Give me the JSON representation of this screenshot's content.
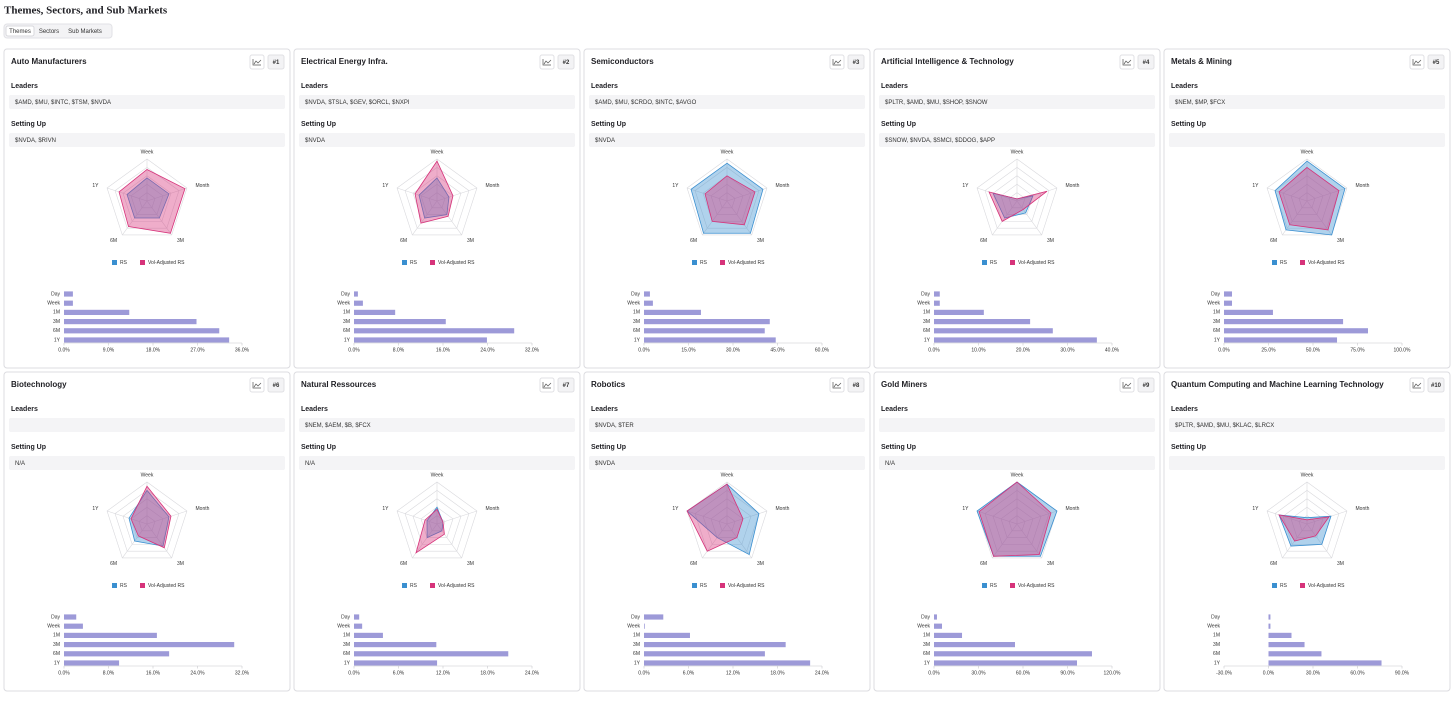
{
  "header": {
    "title": "Themes, Sectors, and Sub Markets",
    "tabs": [
      "Themes",
      "Sectors",
      "Sub Markets"
    ],
    "active_tab": 0
  },
  "cards": [
    {
      "title": "Auto Manufacturers",
      "rank": "#1",
      "leaders_label": "Leaders",
      "leaders": "$AMD, $MU, $INTC, $TSM, $NVDA",
      "setting_up_label": "Setting Up",
      "setting_up": "$NVDA, $RIVN",
      "radar": {
        "type": "radar",
        "axes": [
          "Week",
          "Month",
          "3M",
          "6M",
          "1Y"
        ],
        "rlim": [
          0,
          100
        ],
        "series": [
          {
            "name": "RS",
            "color": "#3a8fd0",
            "values": [
              55,
              55,
              50,
              50,
              50
            ]
          },
          {
            "name": "Vol-Adjusted RS",
            "color": "#d6337a",
            "values": [
              75,
              95,
              95,
              75,
              70
            ]
          }
        ]
      },
      "bars": {
        "type": "bar",
        "color": "#9d9ad8",
        "categories": [
          "Day",
          "Week",
          "1M",
          "3M",
          "6M",
          "1Y"
        ],
        "values": [
          1.8,
          1.8,
          13.2,
          26.8,
          31.4,
          33.4
        ],
        "xlim": [
          0,
          36
        ],
        "xticks": [
          {
            "value": 0,
            "label": "0.0%"
          },
          {
            "value": 9,
            "label": "9.0%"
          },
          {
            "value": 18,
            "label": "18.0%"
          },
          {
            "value": 27,
            "label": "27.0%"
          },
          {
            "value": 36,
            "label": "36.0%"
          }
        ]
      }
    },
    {
      "title": "Electrical Energy Infra.",
      "rank": "#2",
      "leaders_label": "Leaders",
      "leaders": "$NVDA, $TSLA, $GEV, $ORCL, $NXPI",
      "setting_up_label": "Setting Up",
      "setting_up": "$NVDA",
      "radar": {
        "type": "radar",
        "axes": [
          "Week",
          "Month",
          "3M",
          "6M",
          "1Y"
        ],
        "rlim": [
          0,
          100
        ],
        "series": [
          {
            "name": "RS",
            "color": "#3a8fd0",
            "values": [
              55,
              30,
              40,
              50,
              45
            ]
          },
          {
            "name": "Vol-Adjusted RS",
            "color": "#d6337a",
            "values": [
              95,
              40,
              45,
              65,
              55
            ]
          }
        ]
      },
      "bars": {
        "type": "bar",
        "color": "#9d9ad8",
        "categories": [
          "Day",
          "Week",
          "1M",
          "3M",
          "6M",
          "1Y"
        ],
        "values": [
          0.7,
          1.6,
          7.4,
          16.5,
          28.8,
          23.9
        ],
        "xlim": [
          0,
          32
        ],
        "xticks": [
          {
            "value": 0,
            "label": "0.0%"
          },
          {
            "value": 8,
            "label": "8.0%"
          },
          {
            "value": 16,
            "label": "16.0%"
          },
          {
            "value": 24,
            "label": "24.0%"
          },
          {
            "value": 32,
            "label": "32.0%"
          }
        ]
      }
    },
    {
      "title": "Semiconductors",
      "rank": "#3",
      "leaders_label": "Leaders",
      "leaders": "$AMD, $MU, $CRDO, $INTC, $AVGO",
      "setting_up_label": "Setting Up",
      "setting_up": "$NVDA",
      "radar": {
        "type": "radar",
        "axes": [
          "Week",
          "Month",
          "3M",
          "6M",
          "1Y"
        ],
        "rlim": [
          0,
          100
        ],
        "series": [
          {
            "name": "RS",
            "color": "#3a8fd0",
            "values": [
              90,
              90,
              95,
              95,
              90
            ]
          },
          {
            "name": "Vol-Adjusted RS",
            "color": "#d6337a",
            "values": [
              60,
              70,
              70,
              60,
              55
            ]
          }
        ]
      },
      "bars": {
        "type": "bar",
        "color": "#9d9ad8",
        "categories": [
          "Day",
          "Week",
          "1M",
          "3M",
          "6M",
          "1Y"
        ],
        "values": [
          2.0,
          3.0,
          19.2,
          42.4,
          40.7,
          44.4
        ],
        "xlim": [
          0,
          60
        ],
        "xticks": [
          {
            "value": 0,
            "label": "0.0%"
          },
          {
            "value": 15,
            "label": "15.0%"
          },
          {
            "value": 30,
            "label": "30.0%"
          },
          {
            "value": 45,
            "label": "45.0%"
          },
          {
            "value": 60,
            "label": "60.0%"
          }
        ]
      }
    },
    {
      "title": "Artificial Intelligence & Technology",
      "rank": "#4",
      "leaders_label": "Leaders",
      "leaders": "$PLTR, $AMD, $MU, $SHOP, $SNOW",
      "setting_up_label": "Setting Up",
      "setting_up": "$SNOW, $NVDA, $SMCI, $DDOG, $APP",
      "radar": {
        "type": "radar",
        "axes": [
          "Week",
          "Month",
          "3M",
          "6M",
          "1Y"
        ],
        "rlim": [
          0,
          100
        ],
        "series": [
          {
            "name": "RS",
            "color": "#3a8fd0",
            "values": [
              5,
              40,
              35,
              50,
              60
            ]
          },
          {
            "name": "Vol-Adjusted RS",
            "color": "#d6337a",
            "values": [
              5,
              75,
              25,
              60,
              70
            ]
          }
        ]
      },
      "bars": {
        "type": "bar",
        "color": "#9d9ad8",
        "categories": [
          "Day",
          "Week",
          "1M",
          "3M",
          "6M",
          "1Y"
        ],
        "values": [
          1.3,
          1.3,
          11.2,
          21.6,
          26.7,
          36.6
        ],
        "xlim": [
          0,
          40
        ],
        "xticks": [
          {
            "value": 0,
            "label": "0.0%"
          },
          {
            "value": 10,
            "label": "10.0%"
          },
          {
            "value": 20,
            "label": "20.0%"
          },
          {
            "value": 30,
            "label": "30.0%"
          },
          {
            "value": 40,
            "label": "40.0%"
          }
        ]
      }
    },
    {
      "title": "Metals & Mining",
      "rank": "#5",
      "leaders_label": "Leaders",
      "leaders": "$NEM, $MP, $FCX",
      "setting_up_label": "Setting Up",
      "radar": {
        "type": "radar",
        "axes": [
          "Week",
          "Month",
          "3M",
          "6M",
          "1Y"
        ],
        "rlim": [
          0,
          100
        ],
        "series": [
          {
            "name": "RS",
            "color": "#3a8fd0",
            "values": [
              95,
              95,
              100,
              85,
              80
            ]
          },
          {
            "name": "Vol-Adjusted RS",
            "color": "#d6337a",
            "values": [
              80,
              80,
              85,
              70,
              70
            ]
          }
        ]
      },
      "bars": {
        "type": "bar",
        "color": "#9d9ad8",
        "categories": [
          "Day",
          "Week",
          "1M",
          "3M",
          "6M",
          "1Y"
        ],
        "values": [
          4.5,
          4.5,
          27.5,
          66.9,
          80.9,
          63.5
        ],
        "xlim": [
          0,
          100
        ],
        "xticks": [
          {
            "value": 0,
            "label": "0.0%"
          },
          {
            "value": 25,
            "label": "25.0%"
          },
          {
            "value": 50,
            "label": "50.0%"
          },
          {
            "value": 75,
            "label": "75.0%"
          },
          {
            "value": 100,
            "label": "100.0%"
          }
        ]
      }
    },
    {
      "title": "Biotechnology",
      "rank": "#6",
      "leaders_label": "Leaders",
      "setting_up_label": "Setting Up",
      "setting_up": "N/A",
      "radar": {
        "type": "radar",
        "axes": [
          "Week",
          "Month",
          "3M",
          "6M",
          "1Y"
        ],
        "rlim": [
          0,
          100
        ],
        "series": [
          {
            "name": "RS",
            "color": "#3a8fd0",
            "values": [
              80,
              55,
              65,
              50,
              45
            ]
          },
          {
            "name": "Vol-Adjusted RS",
            "color": "#d6337a",
            "values": [
              90,
              60,
              70,
              35,
              40
            ]
          }
        ]
      },
      "bars": {
        "type": "bar",
        "color": "#9d9ad8",
        "categories": [
          "Day",
          "Week",
          "1M",
          "3M",
          "6M",
          "1Y"
        ],
        "values": [
          2.2,
          3.4,
          16.7,
          30.6,
          18.9,
          9.9
        ],
        "xlim": [
          0,
          32
        ],
        "xticks": [
          {
            "value": 0,
            "label": "0.0%"
          },
          {
            "value": 8,
            "label": "8.0%"
          },
          {
            "value": 16,
            "label": "16.0%"
          },
          {
            "value": 24,
            "label": "24.0%"
          },
          {
            "value": 32,
            "label": "32.0%"
          }
        ]
      }
    },
    {
      "title": "Natural Ressources",
      "rank": "#7",
      "leaders_label": "Leaders",
      "leaders": "$NEM, $AEM, $B, $FCX",
      "setting_up_label": "Setting Up",
      "setting_up": "N/A",
      "radar": {
        "type": "radar",
        "axes": [
          "Week",
          "Month",
          "3M",
          "6M",
          "1Y"
        ],
        "rlim": [
          0,
          100
        ],
        "series": [
          {
            "name": "RS",
            "color": "#3a8fd0",
            "values": [
              40,
              15,
              20,
              40,
              25
            ]
          },
          {
            "name": "Vol-Adjusted RS",
            "color": "#d6337a",
            "values": [
              35,
              15,
              30,
              85,
              30
            ]
          }
        ]
      },
      "bars": {
        "type": "bar",
        "color": "#9d9ad8",
        "categories": [
          "Day",
          "Week",
          "1M",
          "3M",
          "6M",
          "1Y"
        ],
        "values": [
          0.7,
          1.1,
          3.9,
          11.1,
          20.8,
          11.2
        ],
        "xlim": [
          0,
          24
        ],
        "xticks": [
          {
            "value": 0,
            "label": "0.0%"
          },
          {
            "value": 6,
            "label": "6.0%"
          },
          {
            "value": 12,
            "label": "12.0%"
          },
          {
            "value": 18,
            "label": "18.0%"
          },
          {
            "value": 24,
            "label": "24.0%"
          }
        ]
      }
    },
    {
      "title": "Robotics",
      "rank": "#8",
      "leaders_label": "Leaders",
      "leaders": "$NVDA, $TER",
      "setting_up_label": "Setting Up",
      "setting_up": "$NVDA",
      "radar": {
        "type": "radar",
        "axes": [
          "Week",
          "Month",
          "3M",
          "6M",
          "1Y"
        ],
        "rlim": [
          0,
          100
        ],
        "series": [
          {
            "name": "RS",
            "color": "#3a8fd0",
            "values": [
              95,
              80,
              90,
              40,
              100
            ]
          },
          {
            "name": "Vol-Adjusted RS",
            "color": "#d6337a",
            "values": [
              95,
              40,
              40,
              80,
              100
            ]
          }
        ]
      },
      "bars": {
        "type": "bar",
        "color": "#9d9ad8",
        "categories": [
          "Day",
          "Week",
          "1M",
          "3M",
          "6M",
          "1Y"
        ],
        "values": [
          2.6,
          0.1,
          6.2,
          19.1,
          16.3,
          22.4
        ],
        "xlim": [
          0,
          24
        ],
        "xticks": [
          {
            "value": 0,
            "label": "0.0%"
          },
          {
            "value": 6,
            "label": "6.0%"
          },
          {
            "value": 12,
            "label": "12.0%"
          },
          {
            "value": 18,
            "label": "18.0%"
          },
          {
            "value": 24,
            "label": "24.0%"
          }
        ]
      }
    },
    {
      "title": "Gold Miners",
      "rank": "#9",
      "leaders_label": "Leaders",
      "setting_up_label": "Setting Up",
      "setting_up": "N/A",
      "radar": {
        "type": "radar",
        "axes": [
          "Week",
          "Month",
          "3M",
          "6M",
          "1Y"
        ],
        "rlim": [
          0,
          100
        ],
        "series": [
          {
            "name": "RS",
            "color": "#3a8fd0",
            "values": [
              100,
              100,
              95,
              95,
              100
            ]
          },
          {
            "name": "Vol-Adjusted RS",
            "color": "#d6337a",
            "values": [
              100,
              85,
              90,
              95,
              95
            ]
          }
        ]
      },
      "bars": {
        "type": "bar",
        "color": "#9d9ad8",
        "categories": [
          "Day",
          "Week",
          "1M",
          "3M",
          "6M",
          "1Y"
        ],
        "values": [
          2.0,
          5.4,
          18.9,
          54.6,
          106.5,
          96.4
        ],
        "xlim": [
          0,
          120
        ],
        "xticks": [
          {
            "value": 0,
            "label": "0.0%"
          },
          {
            "value": 30,
            "label": "30.0%"
          },
          {
            "value": 60,
            "label": "60.0%"
          },
          {
            "value": 90,
            "label": "90.0%"
          },
          {
            "value": 120,
            "label": "120.0%"
          }
        ]
      }
    },
    {
      "title": "Quantum Computing and Machine Learning Technology",
      "rank": "#10",
      "leaders_label": "Leaders",
      "leaders": "$PLTR, $AMD, $MU, $KLAC, $LRCX",
      "setting_up_label": "Setting Up",
      "radar": {
        "type": "radar",
        "axes": [
          "Week",
          "Month",
          "3M",
          "6M",
          "1Y"
        ],
        "rlim": [
          0,
          100
        ],
        "series": [
          {
            "name": "RS",
            "color": "#3a8fd0",
            "values": [
              15,
              60,
              60,
              65,
              70
            ]
          },
          {
            "name": "Vol-Adjusted RS",
            "color": "#d6337a",
            "values": [
              10,
              55,
              35,
              50,
              70
            ]
          }
        ]
      },
      "bars": {
        "type": "bar",
        "color": "#9d9ad8",
        "categories": [
          "Day",
          "Week",
          "1M",
          "3M",
          "6M",
          "1Y"
        ],
        "values": [
          1.3,
          1.3,
          15.5,
          24.3,
          35.7,
          76.2
        ],
        "xlim": [
          -30,
          90
        ],
        "xticks": [
          {
            "value": -30,
            "label": "-30.0%"
          },
          {
            "value": 0,
            "label": "0.0%"
          },
          {
            "value": 30,
            "label": "30.0%"
          },
          {
            "value": 60,
            "label": "60.0%"
          },
          {
            "value": 90,
            "label": "90.0%"
          }
        ]
      }
    }
  ]
}
